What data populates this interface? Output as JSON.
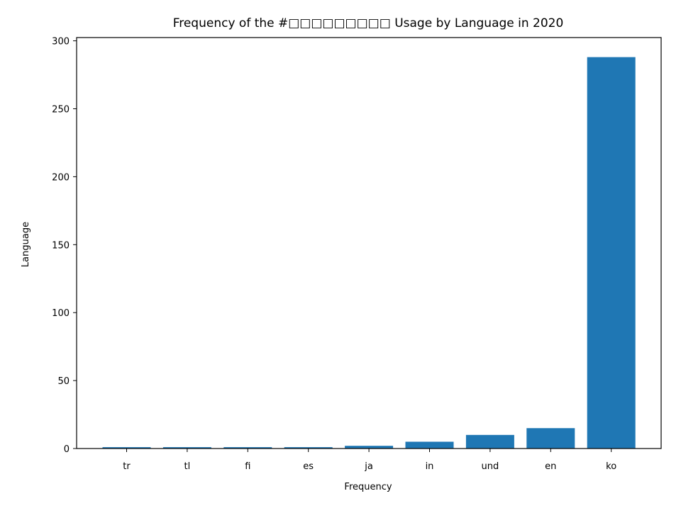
{
  "chart_data": {
    "type": "bar",
    "title": "Frequency of the #□□□□□□□□□ Usage by Language in 2020",
    "xlabel": "Frequency",
    "ylabel": "Language",
    "categories": [
      "tr",
      "tl",
      "fi",
      "es",
      "ja",
      "in",
      "und",
      "en",
      "ko"
    ],
    "values": [
      1,
      1,
      1,
      1,
      2,
      5,
      10,
      15,
      288
    ],
    "ylim": [
      0,
      302.4
    ],
    "yticks": [
      0,
      50,
      100,
      150,
      200,
      250,
      300
    ],
    "bar_color": "#1f77b4",
    "grid": false,
    "legend": "none"
  }
}
